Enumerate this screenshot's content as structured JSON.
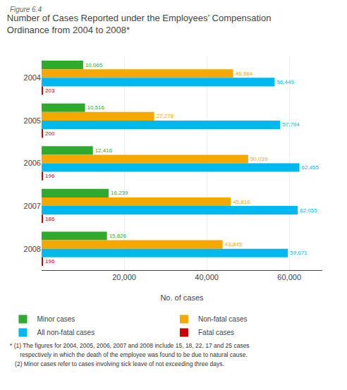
{
  "chart_data": {
    "type": "bar",
    "orientation": "horizontal",
    "title": "Number of Cases Reported under the Employees’ Compensation\nOrdinance from 2004 to 2008*",
    "categories": [
      "2004",
      "2005",
      "2006",
      "2007",
      "2008"
    ],
    "series": [
      {
        "name": "Minor cases",
        "color": "#2eaa2e",
        "values": [
          10065,
          10516,
          12416,
          16239,
          15826
        ],
        "value_labels": [
          "10,065",
          "10,516",
          "12,416",
          "16,239",
          "15,826"
        ]
      },
      {
        "name": "Non-fatal cases",
        "color": "#f5a800",
        "values": [
          46384,
          27278,
          50039,
          45816,
          43845
        ],
        "value_labels": [
          "46,384",
          "27,278",
          "50,039",
          "45,816",
          "43,845"
        ]
      },
      {
        "name": "All non-fatal cases",
        "color": "#00b8f0",
        "values": [
          56449,
          57794,
          62455,
          62055,
          59671
        ],
        "value_labels": [
          "56,449",
          "57,794",
          "62,455",
          "62,055",
          "59,671"
        ]
      },
      {
        "name": "Fatal cases",
        "color": "#cc0000",
        "values": [
          203,
          200,
          196,
          186,
          196
        ],
        "value_labels": [
          "203",
          "200",
          "196",
          "186",
          "196"
        ]
      }
    ],
    "xlabel": "No. of cases",
    "xlim": [
      0,
      68000
    ],
    "xticks": [
      {
        "value": 20000,
        "label": "20,000"
      },
      {
        "value": 40000,
        "label": "40,000"
      },
      {
        "value": 60000,
        "label": "60,000"
      }
    ],
    "grid": true,
    "legend": "bottom",
    "data_labels": true,
    "annotations": [
      "Figure 6.4",
      "* (1) The figures for 2004, 2005, 2006, 2007 and 2008 include 15, 18, 22, 17 and 25 cases",
      "      respectively in which the death of the employee was found to be due to natural cause.",
      "   (2) Minor cases refer to cases involving sick leave of not exceeding three days."
    ]
  }
}
